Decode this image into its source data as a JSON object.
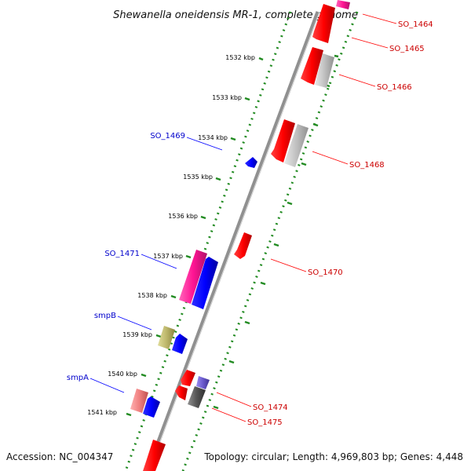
{
  "title": "Shewanella oneidensis MR-1, complete genome",
  "footer": {
    "accession": "Accession: NC_004347",
    "summary": "Topology: circular; Length: 4,969,803 bp; Genes: 4,448"
  },
  "ticks": [
    "1532 kbp",
    "1533 kbp",
    "1534 kbp",
    "1535 kbp",
    "1536 kbp",
    "1537 kbp",
    "1538 kbp",
    "1539 kbp",
    "1540 kbp",
    "1541 kbp"
  ],
  "forward_labels": [
    "SO_1464",
    "SO_1465",
    "SO_1466",
    "SO_1468",
    "SO_1470",
    "SO_1474",
    "SO_1475"
  ],
  "reverse_labels": [
    "SO_1469",
    "SO_1471",
    "smpB",
    "smpA"
  ],
  "colors": {
    "forward_label": "#cc0000",
    "reverse_label": "#0000cc",
    "tick_marks": "#228b22",
    "backbone": "#808080",
    "gene_red": "#ff0000",
    "gene_blue": "#0000ff",
    "gene_pink": "#ff1493",
    "gene_gray": "#c0c0c0",
    "gene_olive": "#bdb76b",
    "gene_salmon": "#f08080",
    "gene_slate": "#6a5acd"
  }
}
